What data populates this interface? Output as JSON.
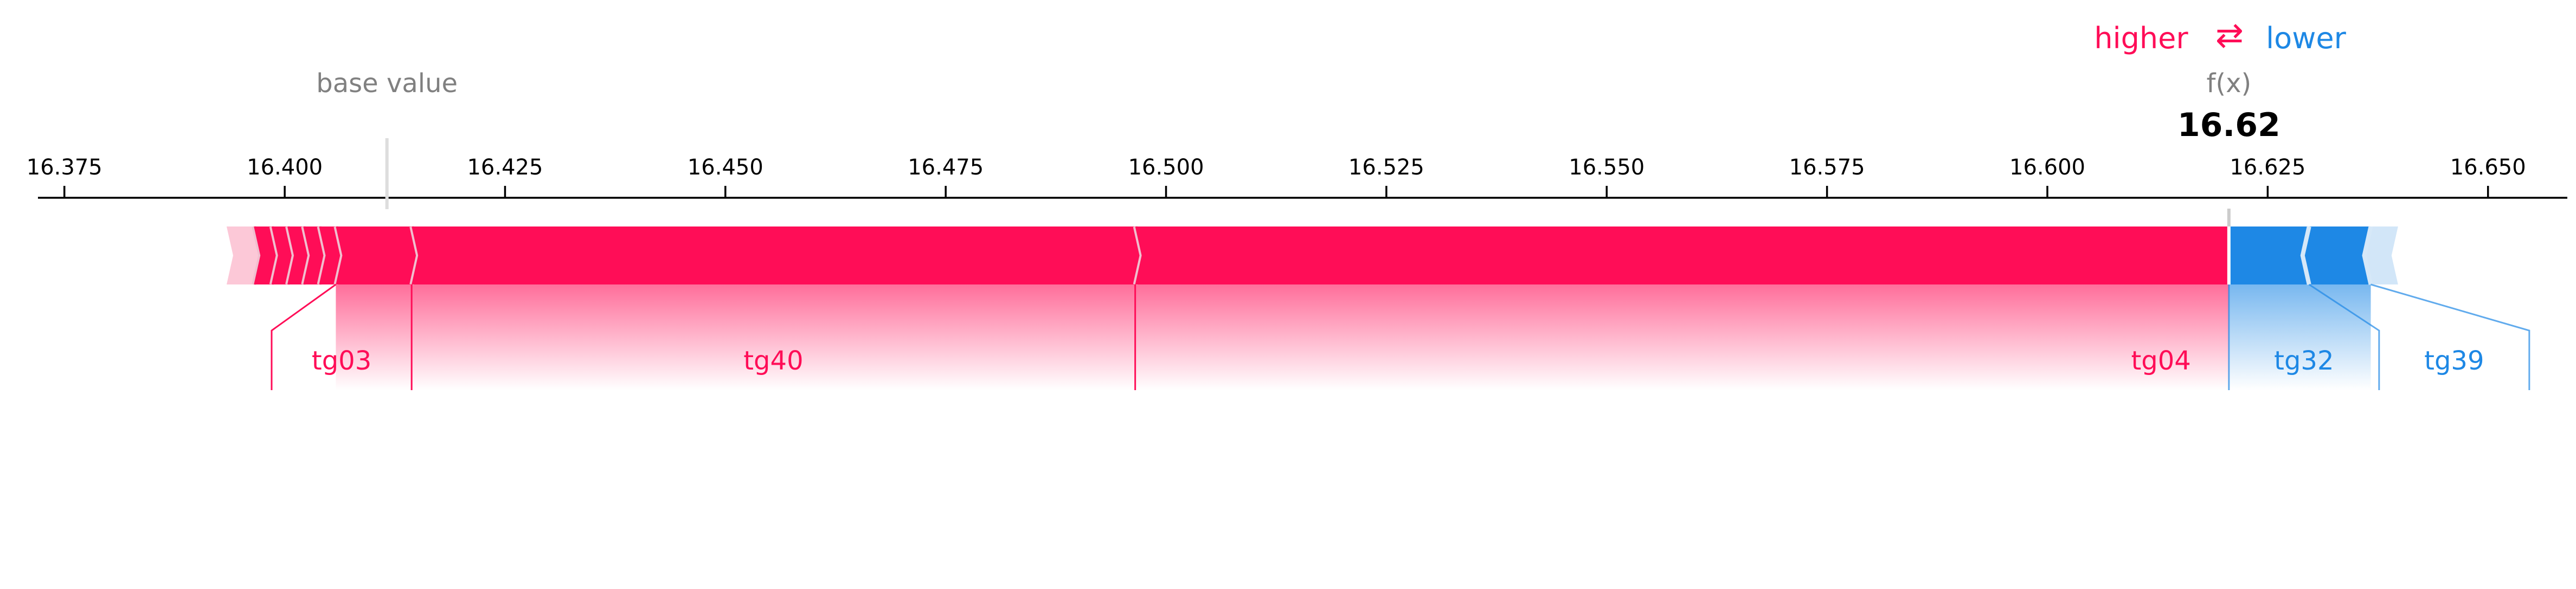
{
  "legend": {
    "higher_label": "higher",
    "arrow_glyph": "⇄",
    "lower_label": "lower"
  },
  "base_value_label": "base value",
  "fx_label": "f(x)",
  "fx_value_label": "16.62",
  "colors": {
    "positive": "#ff0d57",
    "negative": "#1e88e5",
    "positive_light": "#fcc8d7",
    "negative_light": "#d2e6f8",
    "separator": "#f0bfcf",
    "axis": "#000000",
    "muted": "#808080"
  },
  "chart_data": {
    "type": "force",
    "xlim": [
      16.372,
      16.659
    ],
    "tick_values": [
      16.375,
      16.4,
      16.425,
      16.45,
      16.475,
      16.5,
      16.525,
      16.55,
      16.575,
      16.6,
      16.625,
      16.65
    ],
    "tick_labels": [
      "16.375",
      "16.400",
      "16.425",
      "16.450",
      "16.475",
      "16.500",
      "16.525",
      "16.550",
      "16.575",
      "16.600",
      "16.625",
      "16.650"
    ],
    "base_value": 16.4116,
    "output_value": 16.6206,
    "positive_segments": [
      {
        "start": 16.3939,
        "end": 16.3965,
        "label": ""
      },
      {
        "start": 16.3965,
        "end": 16.3985,
        "label": ""
      },
      {
        "start": 16.3985,
        "end": 16.4003,
        "label": ""
      },
      {
        "start": 16.4003,
        "end": 16.4021,
        "label": ""
      },
      {
        "start": 16.4021,
        "end": 16.4039,
        "label": ""
      },
      {
        "start": 16.4039,
        "end": 16.4058,
        "label": ""
      },
      {
        "start": 16.4058,
        "end": 16.4144,
        "label": "tg03"
      },
      {
        "start": 16.4144,
        "end": 16.4965,
        "label": "tg40"
      },
      {
        "start": 16.4965,
        "end": 16.6206,
        "label": "tg04"
      }
    ],
    "negative_segments": [
      {
        "start": 16.6206,
        "end": 16.6297,
        "label": "tg32"
      },
      {
        "start": 16.6297,
        "end": 16.6367,
        "label": "tg39"
      },
      {
        "start": 16.6367,
        "end": 16.6393,
        "label": ""
      }
    ]
  }
}
